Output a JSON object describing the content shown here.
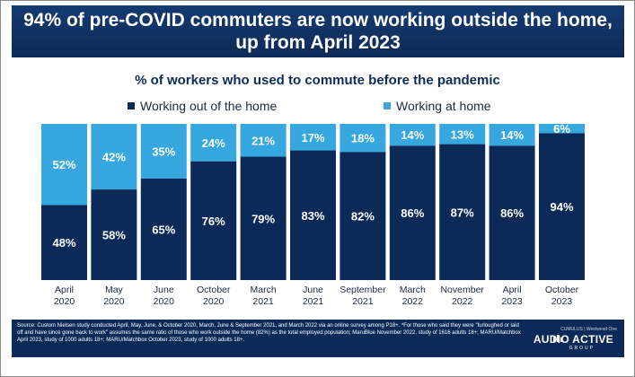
{
  "title": {
    "line1": "94% of pre-COVID commuters are now working outside the home,",
    "line2": "up from April 2023"
  },
  "subtitle": "% of workers who used to commute before the pandemic",
  "legend": {
    "working_out": "Working out of the home",
    "working_home": "Working at home"
  },
  "colors": {
    "banner": "#0c2a57",
    "working_out": "#0c2a57",
    "working_home": "#37a8df",
    "label_text": "#ffffff",
    "axis_text": "#1b2a44"
  },
  "chart_data": {
    "type": "bar",
    "stacked": true,
    "categories": [
      [
        "April",
        "2020"
      ],
      [
        "May",
        "2020"
      ],
      [
        "June",
        "2020"
      ],
      [
        "October",
        "2020"
      ],
      [
        "March",
        "2021"
      ],
      [
        "June",
        "2021"
      ],
      [
        "September",
        "2021"
      ],
      [
        "March",
        "2022"
      ],
      [
        "November",
        "2022"
      ],
      [
        "April",
        "2023"
      ],
      [
        "October",
        "2023"
      ]
    ],
    "series": [
      {
        "name": "Working out of the home",
        "values": [
          48,
          58,
          65,
          76,
          79,
          83,
          82,
          86,
          87,
          86,
          94
        ]
      },
      {
        "name": "Working at home",
        "values": [
          52,
          42,
          35,
          24,
          21,
          17,
          18,
          14,
          13,
          14,
          6
        ]
      }
    ],
    "ylim": [
      0,
      100
    ],
    "value_suffix": "%",
    "legend_position": "top",
    "grid": false
  },
  "footer": {
    "source": "Source: Custom Nielsen study conducted April, May, June, & October 2020, March, June & September 2021, and March 2022 via an online survey among P18+. *For those who said they were \"furloughed or laid off and have since gone back to work\" assumes the same ratio of those who work outside the home (82%) as the total employed population; MaruBlue November 2022, study of 1616 adults 18+; MARU/Matchbox April 2023, study of 1000 adults 18+; MARU/Matchbox October 2023, study of 1000 adults 18+.",
    "logo_top": "CUMULUS | Westwood One",
    "logo_main": "AUDIO ACTIVE",
    "logo_sub": "GROUP"
  }
}
